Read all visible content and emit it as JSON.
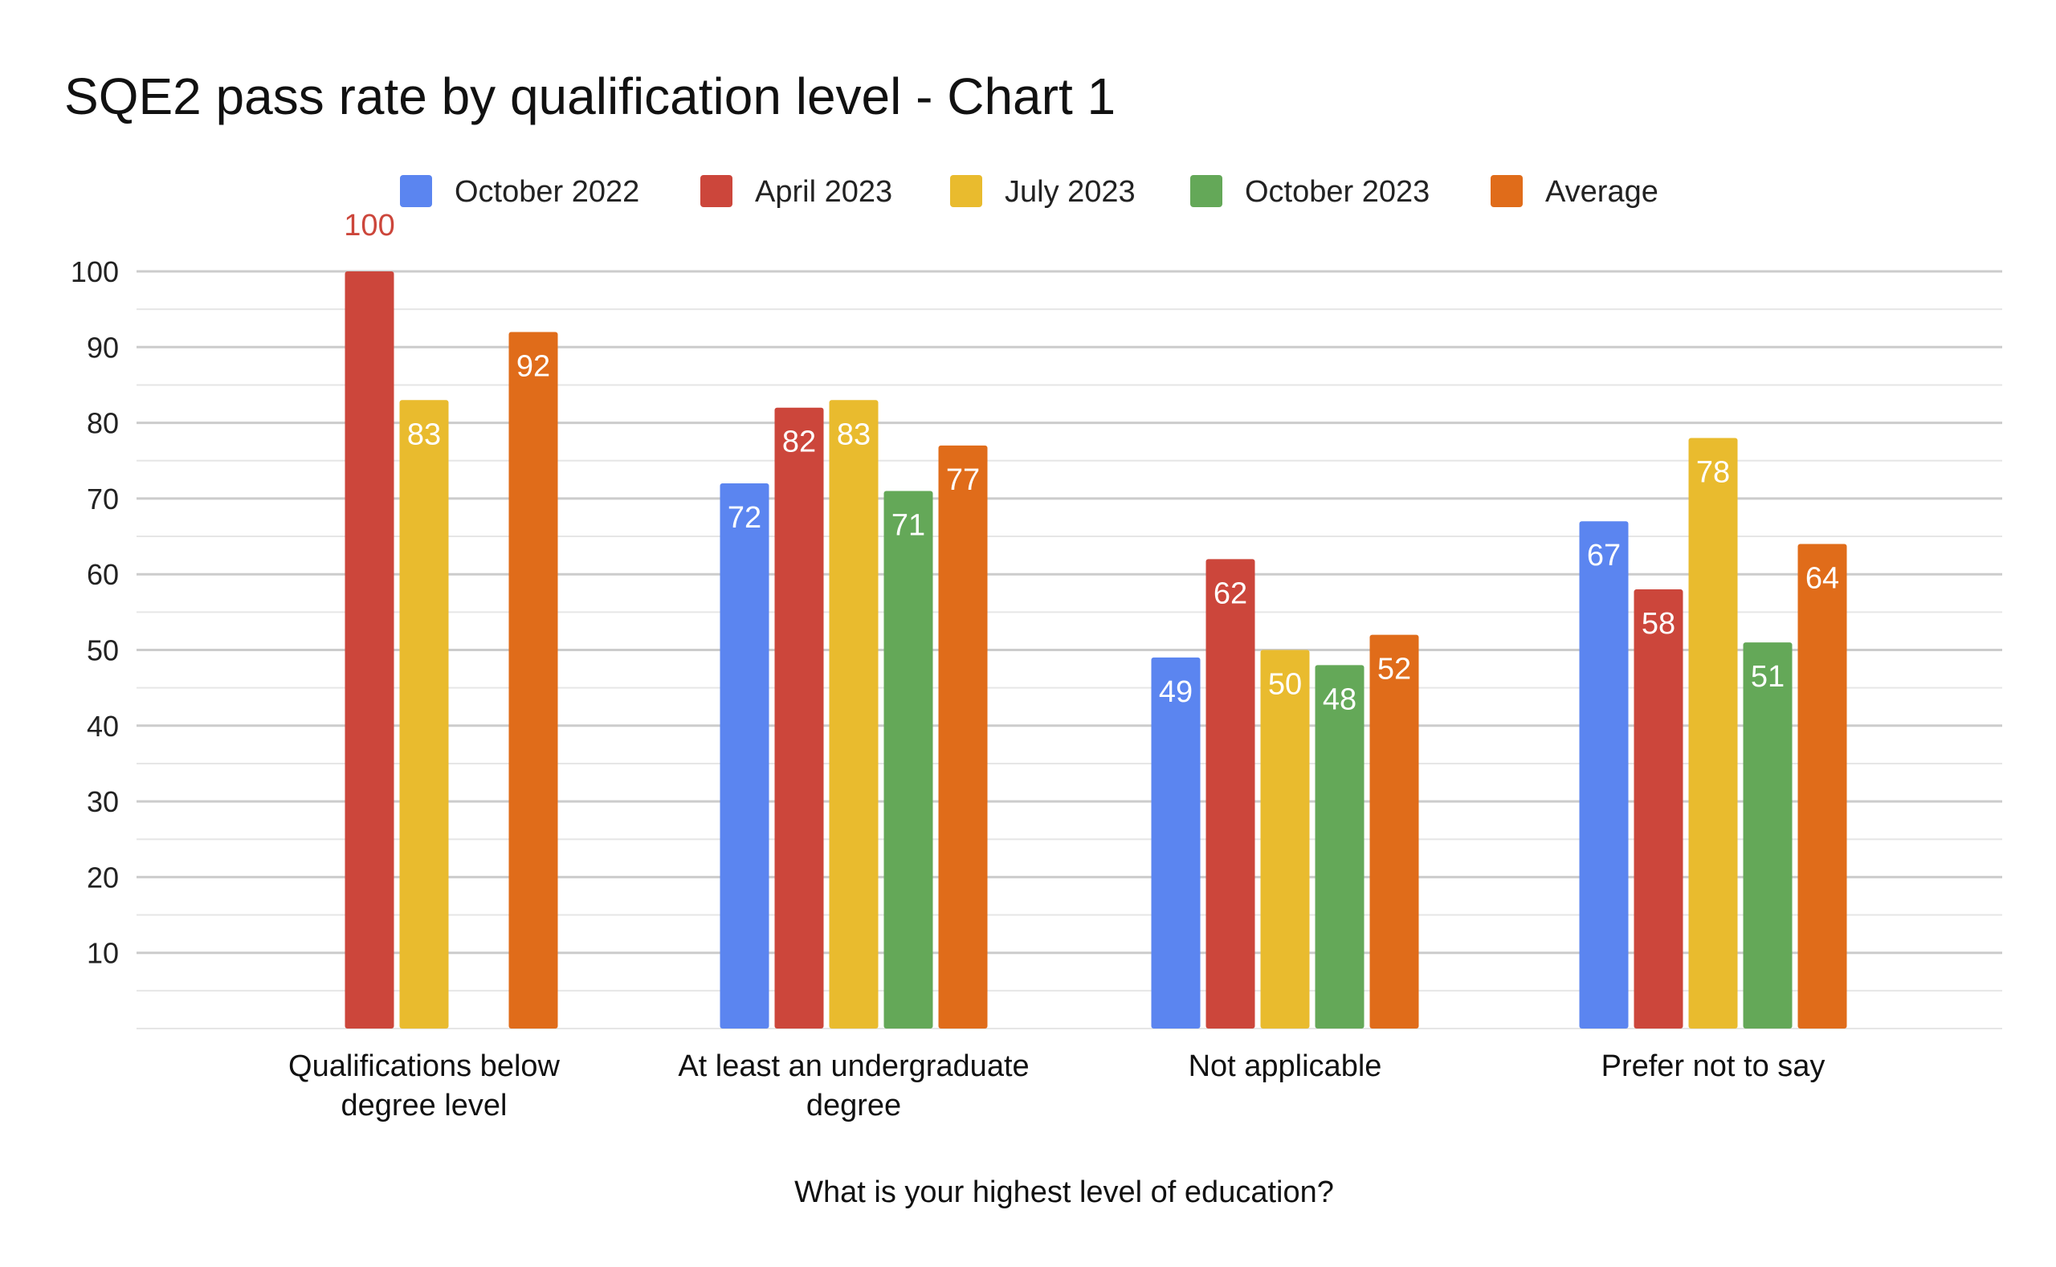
{
  "chart_data": {
    "type": "bar",
    "title": "SQE2 pass rate by qualification level - Chart 1",
    "xlabel": "What is your highest level of education?",
    "ylabel": "",
    "ylim": [
      0,
      100
    ],
    "yticks": [
      10,
      20,
      30,
      40,
      50,
      60,
      70,
      80,
      90,
      100
    ],
    "grid": true,
    "legend_position": "top",
    "categories": [
      [
        "Qualifications below",
        "degree level"
      ],
      [
        "At least an undergraduate",
        "degree"
      ],
      [
        "Not applicable"
      ],
      [
        "Prefer not to say"
      ]
    ],
    "series": [
      {
        "name": "October 2022",
        "color": "#5b85f0",
        "values": [
          null,
          72,
          49,
          67
        ]
      },
      {
        "name": "April 2023",
        "color": "#cc463b",
        "values": [
          100,
          82,
          62,
          58
        ]
      },
      {
        "name": "July 2023",
        "color": "#e9bb2e",
        "values": [
          83,
          83,
          50,
          78
        ]
      },
      {
        "name": "October 2023",
        "color": "#64a858",
        "values": [
          null,
          71,
          48,
          51
        ]
      },
      {
        "name": "Average",
        "color": "#e06c1a",
        "values": [
          92,
          77,
          52,
          64
        ]
      }
    ]
  }
}
